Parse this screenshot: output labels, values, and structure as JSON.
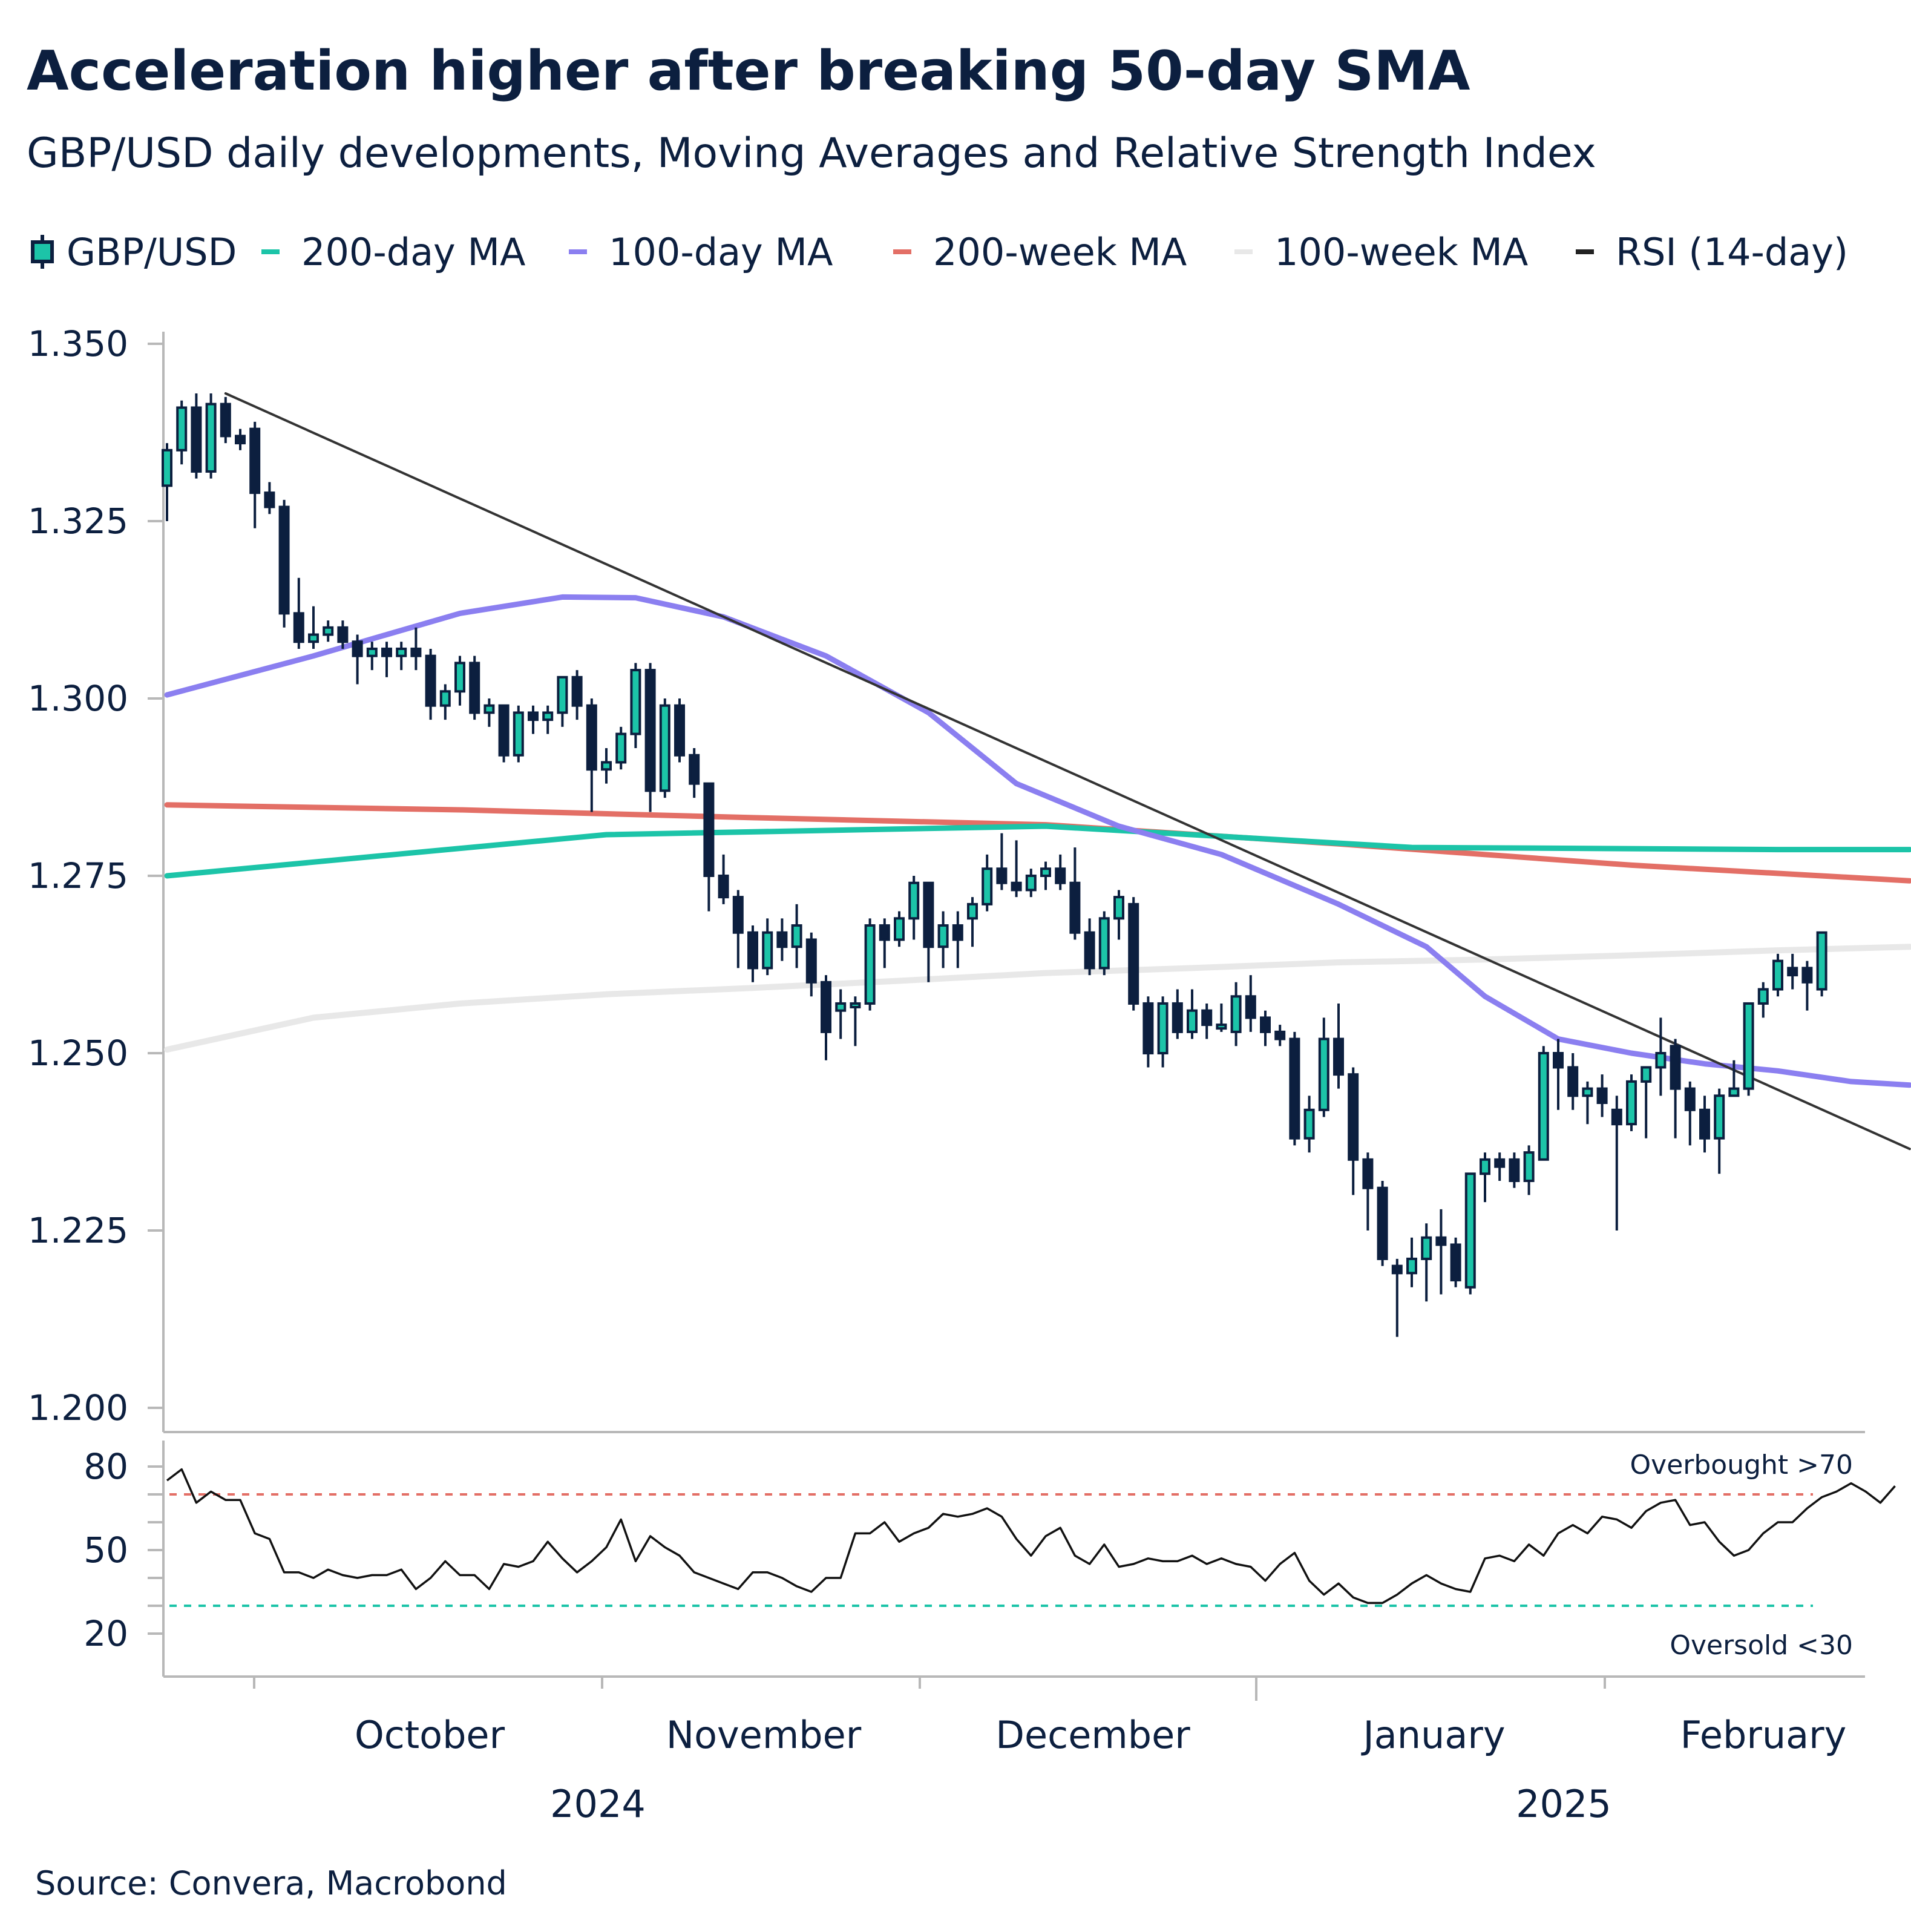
{
  "header": {
    "title": "Acceleration higher after breaking 50-day SMA",
    "subtitle": "GBP/USD daily developments, Moving Averages and Relative Strength Index"
  },
  "legend": [
    {
      "label": "GBP/USD",
      "color": "#1cc4a8",
      "kind": "candle"
    },
    {
      "label": "200-day MA",
      "color": "#1cc4a8",
      "kind": "line"
    },
    {
      "label": "100-day MA",
      "color": "#8b7ff0",
      "kind": "line"
    },
    {
      "label": "200-week MA",
      "color": "#e36f66",
      "kind": "line"
    },
    {
      "label": "100-week MA",
      "color": "#e8e8e8",
      "kind": "line"
    },
    {
      "label": "RSI (14-day)",
      "color": "#222222",
      "kind": "line"
    }
  ],
  "source": "Source: Convera, Macrobond",
  "colors": {
    "up_fill": "#1cc4a8",
    "down_fill": "#0c1f3f",
    "candle_outline": "#0c1f3f",
    "ma200d": "#1cc4a8",
    "ma100d": "#8b7ff0",
    "ma200w": "#e36f66",
    "ma100w": "#e8e8e8",
    "trendline": "#333333",
    "rsi": "#111111",
    "overbought": "#e36f66",
    "oversold": "#1cc4a8"
  },
  "chart_data": [
    {
      "type": "candlestick",
      "title": "Acceleration higher after breaking 50-day SMA",
      "subtitle": "GBP/USD daily developments, Moving Averages and Relative Strength Index",
      "ylim": [
        1.2,
        1.35
      ],
      "y_ticks": [
        "1.350",
        "1.325",
        "1.300",
        "1.275",
        "1.250",
        "1.225",
        "1.200"
      ],
      "x_months": [
        "October",
        "November",
        "December",
        "January",
        "February"
      ],
      "x_years": [
        "2024",
        "2025"
      ],
      "grid": false,
      "legend_position": "top",
      "candles": [
        [
          1.33,
          1.336,
          1.325,
          1.335
        ],
        [
          1.335,
          1.342,
          1.333,
          1.341
        ],
        [
          1.341,
          1.343,
          1.331,
          1.332
        ],
        [
          1.332,
          1.343,
          1.331,
          1.3415
        ],
        [
          1.3415,
          1.3425,
          1.336,
          1.337
        ],
        [
          1.337,
          1.338,
          1.335,
          1.336
        ],
        [
          1.338,
          1.339,
          1.324,
          1.329
        ],
        [
          1.329,
          1.3305,
          1.326,
          1.327
        ],
        [
          1.327,
          1.328,
          1.31,
          1.312
        ],
        [
          1.312,
          1.317,
          1.307,
          1.308
        ],
        [
          1.308,
          1.313,
          1.307,
          1.309
        ],
        [
          1.309,
          1.311,
          1.308,
          1.31
        ],
        [
          1.31,
          1.311,
          1.307,
          1.308
        ],
        [
          1.308,
          1.309,
          1.302,
          1.306
        ],
        [
          1.306,
          1.308,
          1.304,
          1.307
        ],
        [
          1.307,
          1.308,
          1.303,
          1.306
        ],
        [
          1.306,
          1.308,
          1.304,
          1.307
        ],
        [
          1.307,
          1.31,
          1.304,
          1.306
        ],
        [
          1.306,
          1.307,
          1.297,
          1.299
        ],
        [
          1.299,
          1.302,
          1.297,
          1.301
        ],
        [
          1.301,
          1.306,
          1.299,
          1.305
        ],
        [
          1.305,
          1.306,
          1.297,
          1.298
        ],
        [
          1.298,
          1.3,
          1.296,
          1.299
        ],
        [
          1.299,
          1.299,
          1.291,
          1.292
        ],
        [
          1.292,
          1.299,
          1.291,
          1.298
        ],
        [
          1.298,
          1.299,
          1.295,
          1.297
        ],
        [
          1.297,
          1.299,
          1.295,
          1.298
        ],
        [
          1.298,
          1.303,
          1.296,
          1.303
        ],
        [
          1.303,
          1.304,
          1.297,
          1.299
        ],
        [
          1.299,
          1.3,
          1.284,
          1.29
        ],
        [
          1.29,
          1.293,
          1.288,
          1.291
        ],
        [
          1.291,
          1.296,
          1.29,
          1.295
        ],
        [
          1.295,
          1.305,
          1.293,
          1.304
        ],
        [
          1.304,
          1.305,
          1.284,
          1.287
        ],
        [
          1.287,
          1.3,
          1.286,
          1.299
        ],
        [
          1.299,
          1.3,
          1.291,
          1.292
        ],
        [
          1.292,
          1.293,
          1.286,
          1.288
        ],
        [
          1.288,
          1.288,
          1.27,
          1.275
        ],
        [
          1.275,
          1.278,
          1.271,
          1.272
        ],
        [
          1.272,
          1.273,
          1.262,
          1.267
        ],
        [
          1.267,
          1.268,
          1.26,
          1.262
        ],
        [
          1.262,
          1.269,
          1.261,
          1.267
        ],
        [
          1.267,
          1.269,
          1.263,
          1.265
        ],
        [
          1.265,
          1.271,
          1.262,
          1.268
        ],
        [
          1.266,
          1.267,
          1.258,
          1.26
        ],
        [
          1.26,
          1.261,
          1.249,
          1.253
        ],
        [
          1.256,
          1.259,
          1.252,
          1.257
        ],
        [
          1.257,
          1.258,
          1.251,
          1.257
        ],
        [
          1.257,
          1.269,
          1.256,
          1.268
        ],
        [
          1.268,
          1.269,
          1.262,
          1.266
        ],
        [
          1.266,
          1.27,
          1.265,
          1.269
        ],
        [
          1.269,
          1.275,
          1.266,
          1.274
        ],
        [
          1.274,
          1.274,
          1.26,
          1.265
        ],
        [
          1.265,
          1.27,
          1.262,
          1.268
        ],
        [
          1.268,
          1.27,
          1.262,
          1.266
        ],
        [
          1.269,
          1.272,
          1.265,
          1.271
        ],
        [
          1.271,
          1.278,
          1.27,
          1.276
        ],
        [
          1.276,
          1.281,
          1.273,
          1.274
        ],
        [
          1.274,
          1.28,
          1.272,
          1.273
        ],
        [
          1.273,
          1.276,
          1.272,
          1.275
        ],
        [
          1.275,
          1.277,
          1.273,
          1.276
        ],
        [
          1.276,
          1.278,
          1.273,
          1.274
        ],
        [
          1.274,
          1.279,
          1.266,
          1.267
        ],
        [
          1.267,
          1.269,
          1.261,
          1.262
        ],
        [
          1.262,
          1.27,
          1.261,
          1.269
        ],
        [
          1.269,
          1.273,
          1.266,
          1.272
        ],
        [
          1.271,
          1.272,
          1.256,
          1.257
        ],
        [
          1.257,
          1.258,
          1.248,
          1.25
        ],
        [
          1.25,
          1.258,
          1.248,
          1.257
        ],
        [
          1.257,
          1.259,
          1.252,
          1.253
        ],
        [
          1.253,
          1.259,
          1.252,
          1.256
        ],
        [
          1.256,
          1.257,
          1.252,
          1.254
        ],
        [
          1.254,
          1.257,
          1.253,
          1.254
        ],
        [
          1.253,
          1.26,
          1.251,
          1.258
        ],
        [
          1.258,
          1.261,
          1.253,
          1.255
        ],
        [
          1.255,
          1.256,
          1.251,
          1.253
        ],
        [
          1.253,
          1.254,
          1.251,
          1.252
        ],
        [
          1.252,
          1.253,
          1.237,
          1.238
        ],
        [
          1.238,
          1.244,
          1.236,
          1.242
        ],
        [
          1.242,
          1.255,
          1.241,
          1.252
        ],
        [
          1.252,
          1.257,
          1.245,
          1.247
        ],
        [
          1.247,
          1.248,
          1.23,
          1.235
        ],
        [
          1.235,
          1.236,
          1.225,
          1.231
        ],
        [
          1.231,
          1.232,
          1.22,
          1.221
        ],
        [
          1.22,
          1.221,
          1.21,
          1.219
        ],
        [
          1.219,
          1.224,
          1.217,
          1.221
        ],
        [
          1.221,
          1.226,
          1.215,
          1.224
        ],
        [
          1.224,
          1.228,
          1.216,
          1.223
        ],
        [
          1.223,
          1.224,
          1.217,
          1.218
        ],
        [
          1.217,
          1.233,
          1.216,
          1.233
        ],
        [
          1.233,
          1.236,
          1.229,
          1.235
        ],
        [
          1.235,
          1.236,
          1.232,
          1.234
        ],
        [
          1.235,
          1.236,
          1.231,
          1.232
        ],
        [
          1.232,
          1.237,
          1.23,
          1.236
        ],
        [
          1.235,
          1.251,
          1.235,
          1.25
        ],
        [
          1.25,
          1.252,
          1.242,
          1.248
        ],
        [
          1.248,
          1.25,
          1.242,
          1.244
        ],
        [
          1.244,
          1.246,
          1.24,
          1.245
        ],
        [
          1.245,
          1.247,
          1.241,
          1.243
        ],
        [
          1.242,
          1.244,
          1.225,
          1.24
        ],
        [
          1.24,
          1.247,
          1.239,
          1.246
        ],
        [
          1.246,
          1.247,
          1.238,
          1.248
        ],
        [
          1.248,
          1.255,
          1.244,
          1.25
        ],
        [
          1.251,
          1.252,
          1.238,
          1.245
        ],
        [
          1.245,
          1.246,
          1.237,
          1.242
        ],
        [
          1.242,
          1.244,
          1.236,
          1.238
        ],
        [
          1.238,
          1.245,
          1.233,
          1.244
        ],
        [
          1.244,
          1.249,
          1.244,
          1.245
        ],
        [
          1.245,
          1.257,
          1.244,
          1.257
        ],
        [
          1.257,
          1.26,
          1.255,
          1.259
        ],
        [
          1.259,
          1.264,
          1.258,
          1.263
        ],
        [
          1.262,
          1.264,
          1.259,
          1.261
        ],
        [
          1.262,
          1.263,
          1.256,
          1.26
        ],
        [
          1.259,
          1.267,
          1.258,
          1.267
        ]
      ],
      "series": [
        {
          "name": "200-day MA",
          "x": [
            0,
            30,
            60,
            85,
            110,
            119
          ],
          "y": [
            1.275,
            1.2808,
            1.282,
            1.279,
            1.2787,
            1.2787
          ]
        },
        {
          "name": "100-day MA",
          "x": [
            0,
            10,
            15,
            20,
            27,
            32,
            38,
            45,
            52,
            58,
            65,
            72,
            80,
            86,
            90,
            95,
            100,
            105,
            110,
            115,
            119
          ],
          "y": [
            1.3005,
            1.306,
            1.309,
            1.312,
            1.3143,
            1.3142,
            1.3115,
            1.306,
            1.298,
            1.288,
            1.282,
            1.278,
            1.271,
            1.265,
            1.258,
            1.252,
            1.25,
            1.2485,
            1.2475,
            1.246,
            1.2455
          ]
        },
        {
          "name": "200-week MA",
          "x": [
            0,
            20,
            40,
            60,
            80,
            100,
            119
          ],
          "y": [
            1.285,
            1.2843,
            1.2832,
            1.2822,
            1.2795,
            1.2765,
            1.2743
          ]
        },
        {
          "name": "100-week MA",
          "x": [
            0,
            10,
            20,
            30,
            40,
            50,
            60,
            70,
            80,
            90,
            100,
            110,
            119
          ],
          "y": [
            1.2505,
            1.255,
            1.257,
            1.2583,
            1.2592,
            1.2602,
            1.2613,
            1.262,
            1.2628,
            1.2632,
            1.2638,
            1.2645,
            1.265
          ]
        },
        {
          "name": "Trendline",
          "x": [
            4,
            119
          ],
          "y": [
            1.343,
            1.2365
          ]
        }
      ]
    },
    {
      "type": "line",
      "title": "RSI (14-day)",
      "ylim": [
        15,
        85
      ],
      "y_ticks": [
        "80",
        "50",
        "20"
      ],
      "overbought": {
        "value": 70,
        "label": "Overbought >70"
      },
      "oversold": {
        "value": 30,
        "label": "Oversold <30"
      },
      "series": [
        {
          "name": "RSI (14-day)",
          "values": [
            75,
            79,
            67,
            71,
            68,
            68,
            56,
            54,
            42,
            42,
            40,
            43,
            41,
            40,
            41,
            41,
            43,
            36,
            40,
            46,
            41,
            41,
            36,
            45,
            44,
            46,
            53,
            47,
            42,
            46,
            51,
            61,
            46,
            55,
            51,
            48,
            42,
            40,
            38,
            36,
            42,
            42,
            40,
            37,
            35,
            40,
            40,
            56,
            56,
            60,
            53,
            56,
            58,
            63,
            62,
            63,
            65,
            62,
            54,
            48,
            55,
            58,
            48,
            45,
            52,
            44,
            45,
            47,
            46,
            46,
            48,
            45,
            47,
            45,
            44,
            39,
            45,
            49,
            39,
            34,
            38,
            33,
            31,
            31,
            34,
            38,
            41,
            38,
            36,
            35,
            47,
            48,
            46,
            52,
            48,
            56,
            59,
            56,
            62,
            61,
            58,
            64,
            67,
            68,
            59,
            60,
            53,
            48,
            50,
            56,
            60,
            60,
            65,
            69,
            71,
            74,
            71,
            67,
            73
          ]
        }
      ]
    }
  ]
}
